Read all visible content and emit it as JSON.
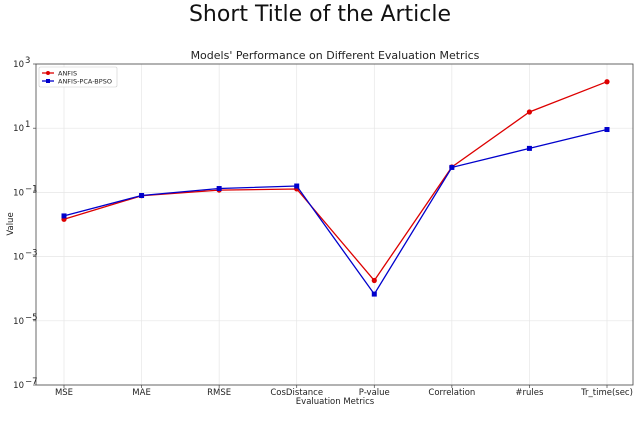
{
  "page": {
    "title": "Short Title of the Article"
  },
  "chart_data": {
    "type": "line",
    "title": "Models' Performance on Different Evaluation Metrics",
    "xlabel": "Evaluation Metrics",
    "ylabel": "Value",
    "yscale": "log",
    "ylim": [
      1e-07,
      1000
    ],
    "yticks": [
      {
        "value": 1e-07,
        "base": "10",
        "exp": "−7"
      },
      {
        "value": 1e-05,
        "base": "10",
        "exp": "−5"
      },
      {
        "value": 0.001,
        "base": "10",
        "exp": "−3"
      },
      {
        "value": 0.1,
        "base": "10",
        "exp": "−1"
      },
      {
        "value": 10,
        "base": "10",
        "exp": "1"
      },
      {
        "value": 1000,
        "base": "10",
        "exp": "3"
      }
    ],
    "grid": true,
    "legend_position": "top-left",
    "categories": [
      "MSE",
      "MAE",
      "RMSE",
      "CosDistance",
      "P-value",
      "Correlation",
      "#rules",
      "Tr_time(sec)"
    ],
    "series": [
      {
        "name": "ANFIS",
        "color": "#dd0000",
        "marker": "circle",
        "values": [
          0.0145,
          0.079,
          0.118,
          0.128,
          0.00018,
          0.62,
          32,
          280
        ]
      },
      {
        "name": "ANFIS-PCA-BPSO",
        "color": "#0000cc",
        "marker": "square",
        "values": [
          0.0185,
          0.08,
          0.132,
          0.158,
          6.8e-05,
          0.6,
          2.35,
          9.1
        ]
      }
    ]
  }
}
